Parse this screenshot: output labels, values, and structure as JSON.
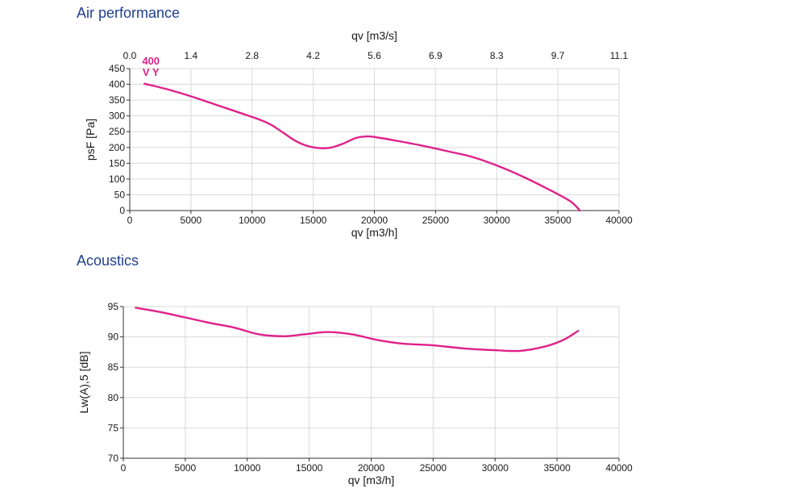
{
  "sections": {
    "air_title": "Air performance",
    "acoustics_title": "Acoustics"
  },
  "colors": {
    "curve": "#e0218a",
    "title": "#1f3f8f",
    "grid": "#d9d9d9",
    "axis": "#333333"
  },
  "chart_data": [
    {
      "type": "line",
      "title": "Air performance",
      "xlabel": "qv [m3/h]",
      "ylabel": "psF [Pa]",
      "x2label": "qv [m3/s]",
      "xlim": [
        0,
        40000
      ],
      "ylim": [
        0,
        450
      ],
      "xticks": [
        0,
        5000,
        10000,
        15000,
        20000,
        25000,
        30000,
        35000,
        40000
      ],
      "yticks": [
        0,
        50,
        100,
        150,
        200,
        250,
        300,
        350,
        400,
        450
      ],
      "x2ticks": [
        "0.0",
        "1.4",
        "2.8",
        "4.2",
        "5.6",
        "6.9",
        "8.3",
        "9.7",
        "11.1"
      ],
      "grid": true,
      "curve_labels": [
        "400",
        "V Y"
      ],
      "series": [
        {
          "x": [
            1200,
            3000,
            5000,
            7000,
            9000,
            10500,
            11500,
            12500,
            13500,
            14500,
            15500,
            16500,
            17500,
            18500,
            19500,
            20500,
            22000,
            24000,
            26000,
            28000,
            30000,
            32000,
            34000,
            36000,
            36800
          ],
          "y": [
            402,
            385,
            362,
            336,
            310,
            290,
            273,
            248,
            222,
            205,
            198,
            200,
            213,
            230,
            235,
            230,
            220,
            205,
            188,
            170,
            143,
            110,
            72,
            30,
            0
          ]
        }
      ]
    },
    {
      "type": "line",
      "title": "Acoustics",
      "xlabel": "qv [m3/h]",
      "ylabel": "Lw(A),5 [dB]",
      "xlim": [
        0,
        40000
      ],
      "ylim": [
        70,
        95
      ],
      "xticks": [
        0,
        5000,
        10000,
        15000,
        20000,
        25000,
        30000,
        35000,
        40000
      ],
      "yticks": [
        70,
        75,
        80,
        85,
        90,
        95
      ],
      "grid": true,
      "series": [
        {
          "x": [
            1000,
            3000,
            5000,
            7000,
            9000,
            11000,
            13000,
            14500,
            16500,
            18500,
            20500,
            22500,
            25000,
            27500,
            30000,
            32000,
            34000,
            35500,
            36700
          ],
          "y": [
            94.8,
            94.1,
            93.2,
            92.3,
            91.5,
            90.4,
            90.1,
            90.4,
            90.8,
            90.4,
            89.5,
            88.9,
            88.6,
            88.1,
            87.8,
            87.7,
            88.4,
            89.5,
            91.0
          ]
        }
      ]
    }
  ]
}
